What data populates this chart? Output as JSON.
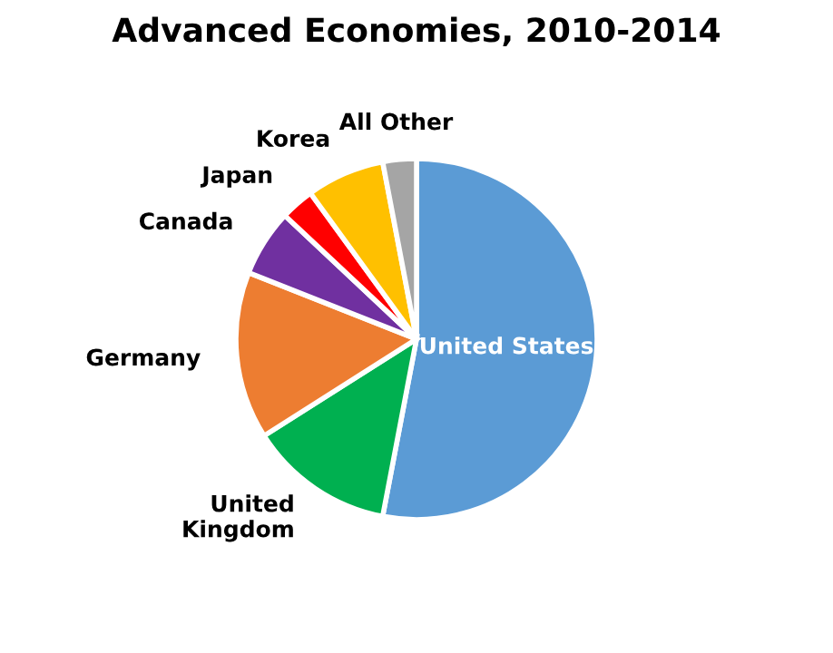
{
  "chart_data": {
    "type": "pie",
    "title": "Advanced Economies, 2010-2014",
    "categories": [
      "United States",
      "United Kingdom",
      "Germany",
      "Canada",
      "Japan",
      "Korea",
      "All Other"
    ],
    "values": [
      53,
      13,
      15,
      6,
      3,
      7,
      3
    ],
    "colors": [
      "#5b9bd5",
      "#00b050",
      "#ed7d31",
      "#7030a0",
      "#ff0000",
      "#ffc000",
      "#a5a5a5"
    ]
  }
}
